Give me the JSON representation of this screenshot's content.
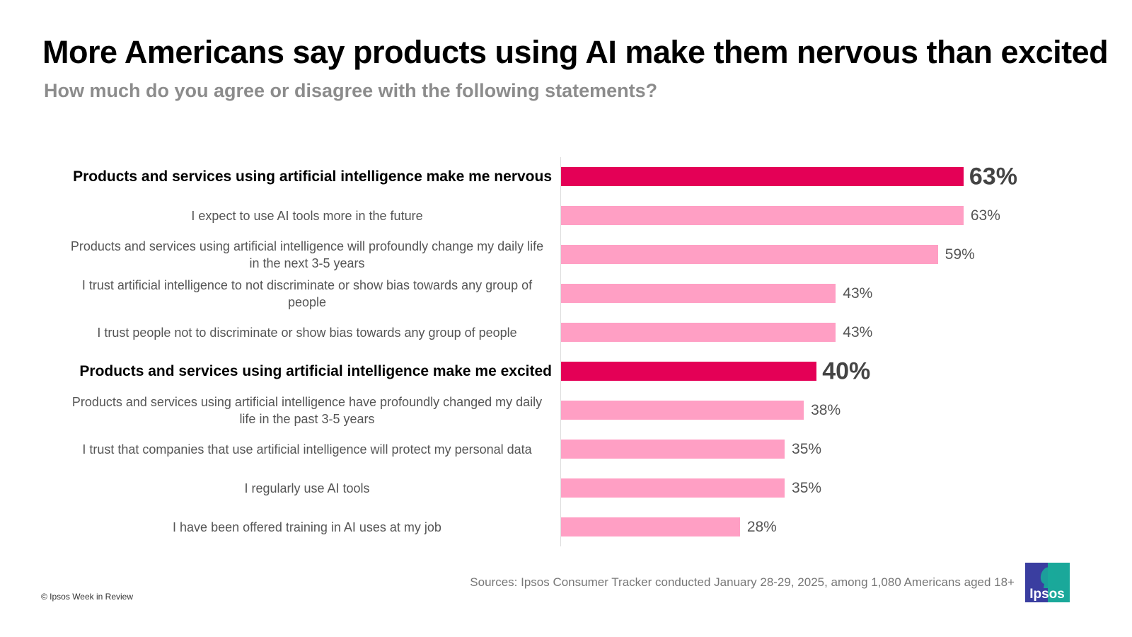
{
  "title": "More Americans say products using AI make them nervous than excited",
  "subtitle": "How much do you agree or disagree with the following statements?",
  "chart_data": {
    "type": "bar",
    "orientation": "horizontal",
    "categories": [
      "Products and services using artificial intelligence make me nervous",
      "I expect to use AI tools more in the future",
      "Products and services using artificial intelligence will profoundly change my daily life in the next 3-5 years",
      "I trust artificial intelligence to not discriminate or show bias towards any group of people",
      "I trust people not to discriminate or show bias towards any group of people",
      "Products and services using artificial intelligence make me excited",
      "Products and services using artificial intelligence have profoundly changed my daily life in the past 3-5 years",
      "I trust that companies that use artificial intelligence will protect my personal data",
      "I regularly use AI tools",
      "I have been offered training in AI uses at my job"
    ],
    "values": [
      63,
      63,
      59,
      43,
      43,
      40,
      38,
      35,
      35,
      28
    ],
    "value_labels": [
      "63%",
      "63%",
      "59%",
      "43%",
      "43%",
      "40%",
      "38%",
      "35%",
      "35%",
      "28%"
    ],
    "highlighted": [
      true,
      false,
      false,
      false,
      false,
      true,
      false,
      false,
      false,
      false
    ],
    "colors": {
      "highlight": "#E40056",
      "default": "#FF9FC4"
    },
    "unit": "%",
    "grid": false
  },
  "source": "Sources:  Ipsos Consumer Tracker conducted January 28-29, 2025, among 1,080 Americans aged 18+",
  "copyright": "© Ipsos Week in Review",
  "logo": {
    "text": "Ipsos",
    "colors": [
      "#3A3EA0",
      "#1AA89A"
    ]
  }
}
